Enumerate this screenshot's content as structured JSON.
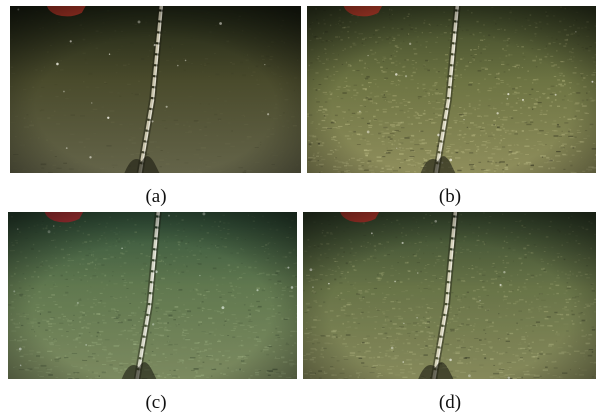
{
  "figure": {
    "panels": [
      {
        "id": "a",
        "label": "(a)",
        "scene": "seabed-cable",
        "palette": {
          "top": "#1e2414",
          "mid": "#4a4b2c",
          "bottom": "#646449",
          "texture": "#7a7a58",
          "cable": "#d6d0b8",
          "marker": "#c23a2a",
          "tint": "#000000"
        },
        "texture_density": 0.15,
        "tint_opacity": 0.0
      },
      {
        "id": "b",
        "label": "(b)",
        "scene": "seabed-cable",
        "palette": {
          "top": "#3a4426",
          "mid": "#6d7443",
          "bottom": "#8f8e5c",
          "texture": "#c1c08a",
          "cable": "#e6e2cc",
          "marker": "#d2402e",
          "tint": "#000000"
        },
        "texture_density": 0.85,
        "tint_opacity": 0.0
      },
      {
        "id": "c",
        "label": "(c)",
        "scene": "seabed-cable",
        "palette": {
          "top": "#2f4530",
          "mid": "#69754a",
          "bottom": "#8a8a5e",
          "texture": "#b6bd8c",
          "cable": "#e2e2d2",
          "marker": "#c8343a",
          "tint": "#3f8a6a"
        },
        "texture_density": 0.7,
        "tint_opacity": 0.18
      },
      {
        "id": "d",
        "label": "(d)",
        "scene": "seabed-cable",
        "palette": {
          "top": "#34442a",
          "mid": "#6b7446",
          "bottom": "#8d8c5c",
          "texture": "#bdbd88",
          "cable": "#e4e0c8",
          "marker": "#cc3a30",
          "tint": "#4d7a5a"
        },
        "texture_density": 0.75,
        "tint_opacity": 0.1
      }
    ]
  }
}
